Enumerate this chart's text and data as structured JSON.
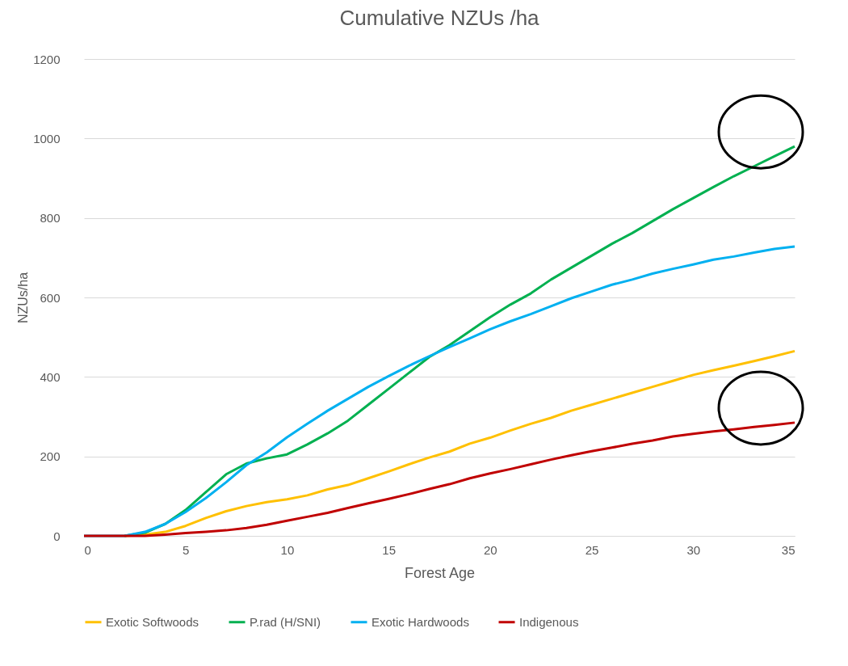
{
  "chart_data": {
    "type": "line",
    "title": "Cumulative NZUs /ha",
    "xlabel": "Forest Age",
    "ylabel": "NZUs/ha",
    "x": [
      0,
      1,
      2,
      3,
      4,
      5,
      6,
      7,
      8,
      9,
      10,
      11,
      12,
      13,
      14,
      15,
      16,
      17,
      18,
      19,
      20,
      21,
      22,
      23,
      24,
      25,
      26,
      27,
      28,
      29,
      30,
      31,
      32,
      33,
      34,
      35
    ],
    "xlim": [
      0,
      35
    ],
    "xticks": [
      0,
      5,
      10,
      15,
      20,
      25,
      30,
      35
    ],
    "ylim": [
      0,
      1200
    ],
    "yticks": [
      0,
      200,
      400,
      600,
      800,
      1000,
      1200
    ],
    "grid": "y",
    "legend": "bottom",
    "marker": "none",
    "series": [
      {
        "name": "Exotic Softwoods",
        "color": "#ffc000",
        "values": [
          null,
          null,
          0,
          3,
          10,
          25,
          45,
          62,
          75,
          85,
          92,
          102,
          117,
          128,
          145,
          162,
          180,
          197,
          212,
          232,
          247,
          265,
          282,
          297,
          315,
          330,
          345,
          360,
          375,
          390,
          405,
          417,
          428,
          440,
          452,
          465
        ]
      },
      {
        "name": "P.rad (H/SNI)",
        "color": "#00b050",
        "values": [
          null,
          null,
          0,
          8,
          30,
          65,
          110,
          155,
          182,
          195,
          205,
          230,
          258,
          290,
          330,
          370,
          410,
          450,
          480,
          515,
          550,
          582,
          610,
          645,
          675,
          705,
          735,
          762,
          792,
          822,
          850,
          878,
          905,
          930,
          955,
          980
        ]
      },
      {
        "name": "Exotic Hardwoods",
        "color": "#00b0f0",
        "values": [
          0,
          0,
          0,
          10,
          30,
          60,
          95,
          135,
          178,
          210,
          248,
          282,
          315,
          345,
          375,
          402,
          428,
          452,
          475,
          497,
          520,
          540,
          558,
          578,
          598,
          615,
          632,
          645,
          660,
          672,
          683,
          695,
          703,
          713,
          722,
          728
        ]
      },
      {
        "name": "Indigenous",
        "color": "#c00000",
        "values": [
          0,
          0,
          0,
          0,
          3,
          7,
          10,
          14,
          20,
          28,
          38,
          48,
          58,
          70,
          82,
          93,
          105,
          118,
          130,
          145,
          157,
          168,
          180,
          192,
          203,
          213,
          222,
          232,
          240,
          250,
          257,
          263,
          268,
          274,
          279,
          285
        ]
      }
    ]
  }
}
